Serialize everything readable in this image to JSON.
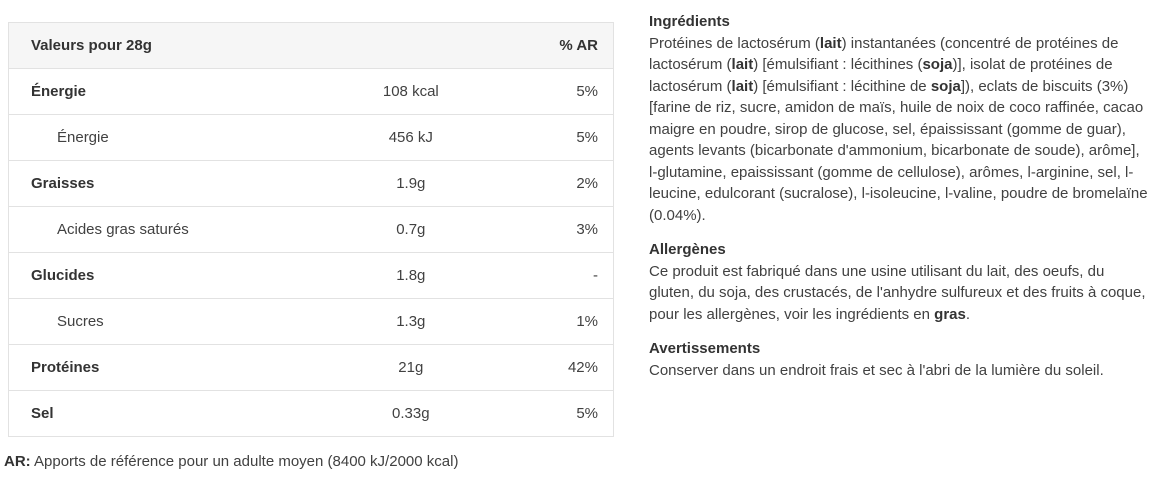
{
  "nutrition_table": {
    "header": {
      "label": "Valeurs pour 28g",
      "ar_label": "% AR"
    },
    "rows": [
      {
        "label": "Énergie",
        "value": "108 kcal",
        "ar": "5%",
        "bold": true,
        "indent": false
      },
      {
        "label": "Énergie",
        "value": "456 kJ",
        "ar": "5%",
        "bold": false,
        "indent": true
      },
      {
        "label": "Graisses",
        "value": "1.9g",
        "ar": "2%",
        "bold": true,
        "indent": false
      },
      {
        "label": "Acides gras saturés",
        "value": "0.7g",
        "ar": "3%",
        "bold": false,
        "indent": true
      },
      {
        "label": "Glucides",
        "value": "1.8g",
        "ar": "-",
        "bold": true,
        "indent": false
      },
      {
        "label": "Sucres",
        "value": "1.3g",
        "ar": "1%",
        "bold": false,
        "indent": true
      },
      {
        "label": "Protéines",
        "value": "21g",
        "ar": "42%",
        "bold": true,
        "indent": false
      },
      {
        "label": "Sel",
        "value": "0.33g",
        "ar": "5%",
        "bold": true,
        "indent": false
      }
    ],
    "footnote": {
      "prefix": "AR:",
      "text": " Apports de référence pour un adulte moyen (8400 kJ/2000 kcal)"
    }
  },
  "details": {
    "ingredients": {
      "heading": "Ingrédients",
      "segments": [
        {
          "t": "Protéines de lactosérum (",
          "b": false
        },
        {
          "t": "lait",
          "b": true
        },
        {
          "t": ") instantanées (concentré de protéines de lactosérum (",
          "b": false
        },
        {
          "t": "lait",
          "b": true
        },
        {
          "t": ") [émulsifiant : lécithines (",
          "b": false
        },
        {
          "t": "soja",
          "b": true
        },
        {
          "t": ")], isolat de protéines de lactosérum (",
          "b": false
        },
        {
          "t": "lait",
          "b": true
        },
        {
          "t": ") [émulsifiant : lécithine de ",
          "b": false
        },
        {
          "t": "soja",
          "b": true
        },
        {
          "t": "]), eclats de biscuits (3%) [farine de riz, sucre, amidon de maïs, huile de noix de coco raffinée, cacao maigre en poudre, sirop de glucose, sel, épaississant (gomme de guar), agents levants (bicarbonate d'ammonium, bicarbonate de soude), arôme], l-glutamine, epaississant (gomme de cellulose), arômes, l-arginine, sel, l-leucine, edulcorant (sucralose), l-isoleucine, l-valine, poudre de bromelaïne (0.04%).",
          "b": false
        }
      ]
    },
    "allergens": {
      "heading": "Allergènes",
      "segments": [
        {
          "t": "Ce produit est fabriqué dans une usine utilisant du lait, des oeufs, du gluten, du soja, des crustacés, de l'anhydre sulfureux et des fruits à coque, pour les allergènes, voir les ingrédients en ",
          "b": false
        },
        {
          "t": "gras",
          "b": true
        },
        {
          "t": ".",
          "b": false
        }
      ]
    },
    "warnings": {
      "heading": "Avertissements",
      "segments": [
        {
          "t": "Conserver dans un endroit frais et sec à l'abri de la lumière du soleil.",
          "b": false
        }
      ]
    }
  },
  "colors": {
    "table_header_bg": "#f6f6f6",
    "table_border": "#e2e2e2",
    "body_text": "#414141",
    "heading_text": "#333333"
  }
}
